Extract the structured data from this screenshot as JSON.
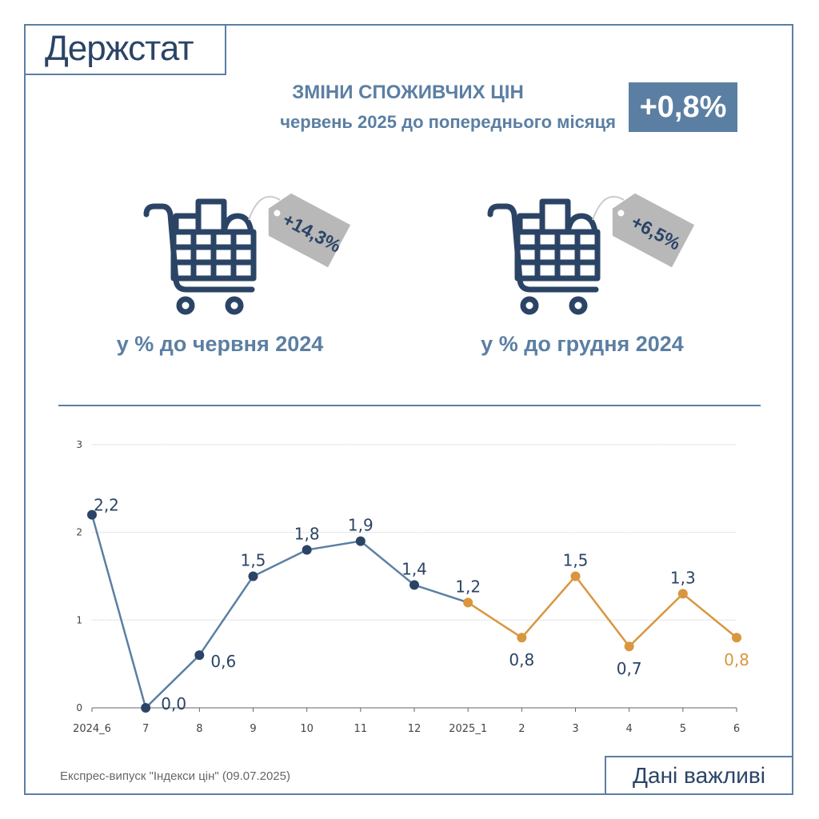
{
  "header": {
    "logo": "Держстат",
    "title": "ЗМІНИ СПОЖИВЧИХ ЦІН",
    "subtitle": "червень 2025 до попереднього місяця",
    "badge": "+0,8%"
  },
  "cards": [
    {
      "tag": "+14,3%",
      "caption": "у % до червня 2024",
      "icon": "shopping-cart-icon"
    },
    {
      "tag": "+6,5%",
      "caption": "у % до грудня 2024",
      "icon": "shopping-cart-icon"
    }
  ],
  "colors": {
    "navy": "#2b4466",
    "blue": "#5b7fa3",
    "orange": "#d9963f",
    "tag": "#b8b8b8"
  },
  "chart_data": {
    "type": "line",
    "categories": [
      "2024_6",
      "7",
      "8",
      "9",
      "10",
      "11",
      "12",
      "2025_1",
      "2",
      "3",
      "4",
      "5",
      "6"
    ],
    "values": [
      2.2,
      0.0,
      0.6,
      1.5,
      1.8,
      1.9,
      1.4,
      1.2,
      0.8,
      1.5,
      0.7,
      1.3,
      0.8
    ],
    "labels": [
      "2,2",
      "0,0",
      "0,6",
      "1,5",
      "1,8",
      "1,9",
      "1,4",
      "1,2",
      "0,8",
      "1,5",
      "0,7",
      "1,3",
      "0,8"
    ],
    "series_split": {
      "2024": "#5b7fa3",
      "2025": "#d9963f"
    },
    "yticks": [
      "0",
      "1",
      "2",
      "3"
    ],
    "ylim": [
      0,
      3
    ],
    "grid": true
  },
  "footer": {
    "source": "Експрес-випуск \"Індекси цін\" (09.07.2025)",
    "important": "Дані важливі"
  }
}
